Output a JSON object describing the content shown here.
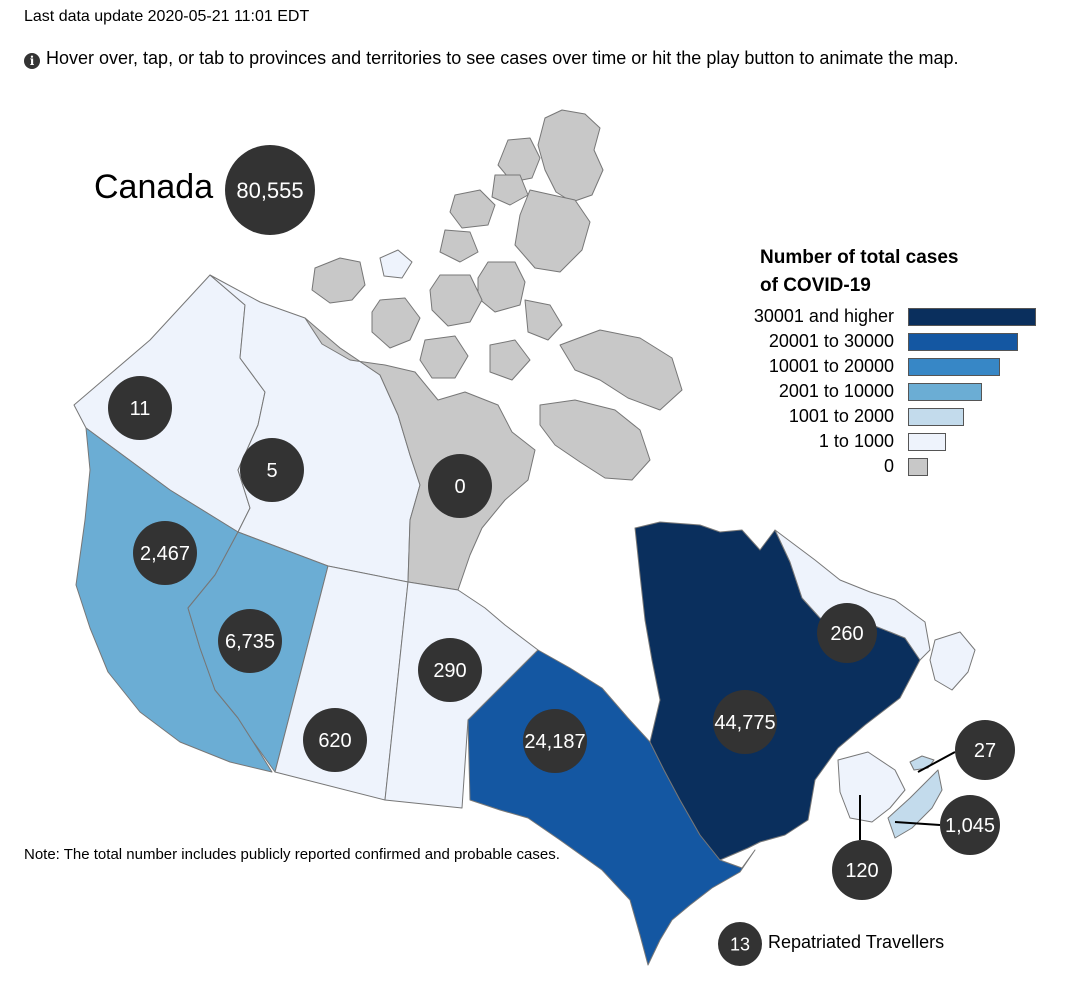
{
  "header": {
    "last_update": "Last data update 2020-05-21 11:01 EDT",
    "hint": "Hover over, tap, or tab to provinces and territories to see cases over time or hit the play button to animate the map.",
    "info_icon": "info-icon"
  },
  "national": {
    "label": "Canada",
    "total": "80,555"
  },
  "colors": {
    "c0": "#c8c8c8",
    "c1": "#eef3fc",
    "c2": "#c3dbec",
    "c3": "#6badd4",
    "c4": "#3787c6",
    "c5": "#1457a2",
    "c6": "#0a2f5d",
    "bubble": "#333333"
  },
  "legend": {
    "title_line1": "Number of total cases",
    "title_line2": "of COVID-19",
    "items": [
      {
        "label": "30001 and higher",
        "color": "#0a2f5d"
      },
      {
        "label": "20001 to 30000",
        "color": "#1457a2"
      },
      {
        "label": "10001 to 20000",
        "color": "#3787c6"
      },
      {
        "label": "2001 to 10000",
        "color": "#6badd4"
      },
      {
        "label": "1001 to 2000",
        "color": "#c3dbec"
      },
      {
        "label": "1 to 1000",
        "color": "#eef3fc"
      },
      {
        "label": "0",
        "color": "#c8c8c8"
      }
    ]
  },
  "regions": [
    {
      "id": "yukon",
      "cases": "11",
      "value": 11
    },
    {
      "id": "northwest-territories",
      "cases": "5",
      "value": 5
    },
    {
      "id": "nunavut",
      "cases": "0",
      "value": 0
    },
    {
      "id": "british-columbia",
      "cases": "2,467",
      "value": 2467
    },
    {
      "id": "alberta",
      "cases": "6,735",
      "value": 6735
    },
    {
      "id": "saskatchewan",
      "cases": "620",
      "value": 620
    },
    {
      "id": "manitoba",
      "cases": "290",
      "value": 290
    },
    {
      "id": "ontario",
      "cases": "24,187",
      "value": 24187
    },
    {
      "id": "quebec",
      "cases": "44,775",
      "value": 44775
    },
    {
      "id": "newfoundland-and-labrador",
      "cases": "260",
      "value": 260
    },
    {
      "id": "new-brunswick",
      "cases": "120",
      "value": 120
    },
    {
      "id": "prince-edward-island",
      "cases": "27",
      "value": 27
    },
    {
      "id": "nova-scotia",
      "cases": "1,045",
      "value": 1045
    }
  ],
  "repatriated": {
    "count": "13",
    "label": "Repatriated Travellers"
  },
  "note": "Note: The total number includes publicly reported confirmed and probable cases."
}
